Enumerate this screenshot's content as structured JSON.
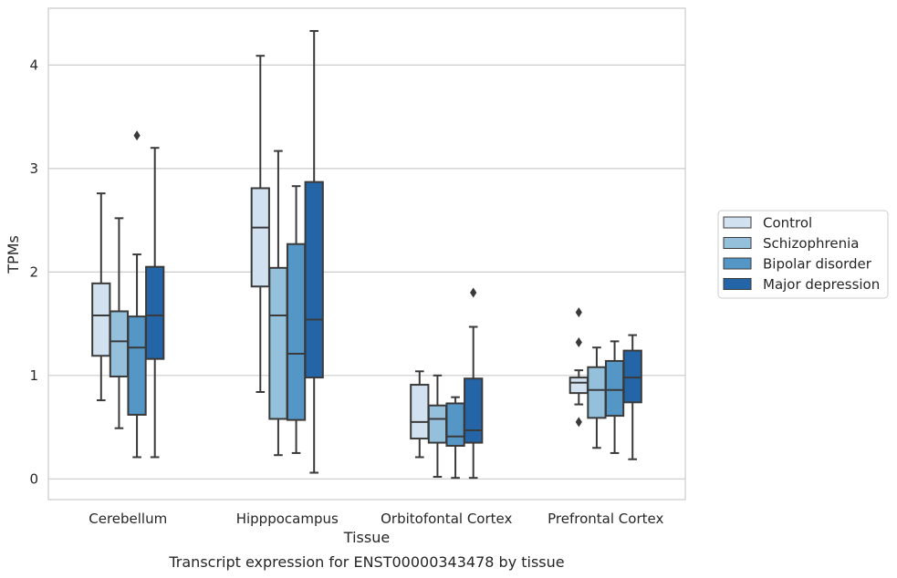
{
  "chart_data": {
    "type": "boxplot",
    "title": "",
    "caption": "Transcript expression for ENST00000343478 by tissue",
    "xlabel": "Tissue",
    "ylabel": "TPMs",
    "ylim": [
      -0.2,
      4.55
    ],
    "yticks": [
      0,
      1,
      2,
      3,
      4
    ],
    "grid": "horizontal",
    "legend_position": "right",
    "categories": [
      "Cerebellum",
      "Hipppocampus",
      "Orbitofontal Cortex",
      "Prefrontal Cortex"
    ],
    "series": [
      {
        "name": "Control",
        "color": "#d1e1f0",
        "boxes": [
          {
            "whislo": 0.76,
            "q1": 1.19,
            "med": 1.58,
            "q3": 1.89,
            "whishi": 2.76,
            "fliers": []
          },
          {
            "whislo": 0.84,
            "q1": 1.86,
            "med": 2.43,
            "q3": 2.81,
            "whishi": 4.09,
            "fliers": []
          },
          {
            "whislo": 0.21,
            "q1": 0.39,
            "med": 0.55,
            "q3": 0.91,
            "whishi": 1.04,
            "fliers": []
          },
          {
            "whislo": 0.72,
            "q1": 0.83,
            "med": 0.93,
            "q3": 0.98,
            "whishi": 1.05,
            "fliers": [
              0.55,
              1.32,
              1.61
            ]
          }
        ]
      },
      {
        "name": "Schizophrenia",
        "color": "#94c0dc",
        "boxes": [
          {
            "whislo": 0.49,
            "q1": 0.99,
            "med": 1.33,
            "q3": 1.62,
            "whishi": 2.52,
            "fliers": []
          },
          {
            "whislo": 0.23,
            "q1": 0.58,
            "med": 1.58,
            "q3": 2.04,
            "whishi": 3.17,
            "fliers": []
          },
          {
            "whislo": 0.02,
            "q1": 0.35,
            "med": 0.58,
            "q3": 0.71,
            "whishi": 1.0,
            "fliers": []
          },
          {
            "whislo": 0.3,
            "q1": 0.59,
            "med": 0.86,
            "q3": 1.08,
            "whishi": 1.27,
            "fliers": []
          }
        ]
      },
      {
        "name": "Bipolar disorder",
        "color": "#5496c6",
        "boxes": [
          {
            "whislo": 0.21,
            "q1": 0.62,
            "med": 1.27,
            "q3": 1.57,
            "whishi": 2.17,
            "fliers": [
              3.32
            ]
          },
          {
            "whislo": 0.25,
            "q1": 0.57,
            "med": 1.21,
            "q3": 2.27,
            "whishi": 2.83,
            "fliers": []
          },
          {
            "whislo": 0.01,
            "q1": 0.32,
            "med": 0.41,
            "q3": 0.73,
            "whishi": 0.79,
            "fliers": []
          },
          {
            "whislo": 0.25,
            "q1": 0.61,
            "med": 0.86,
            "q3": 1.14,
            "whishi": 1.33,
            "fliers": []
          }
        ]
      },
      {
        "name": "Major depression",
        "color": "#2465a8",
        "boxes": [
          {
            "whislo": 0.21,
            "q1": 1.16,
            "med": 1.58,
            "q3": 2.05,
            "whishi": 3.2,
            "fliers": []
          },
          {
            "whislo": 0.06,
            "q1": 0.98,
            "med": 1.54,
            "q3": 2.87,
            "whishi": 4.33,
            "fliers": []
          },
          {
            "whislo": 0.01,
            "q1": 0.35,
            "med": 0.47,
            "q3": 0.97,
            "whishi": 1.47,
            "fliers": [
              1.8
            ]
          },
          {
            "whislo": 0.19,
            "q1": 0.74,
            "med": 0.98,
            "q3": 1.24,
            "whishi": 1.39,
            "fliers": []
          }
        ]
      }
    ]
  }
}
